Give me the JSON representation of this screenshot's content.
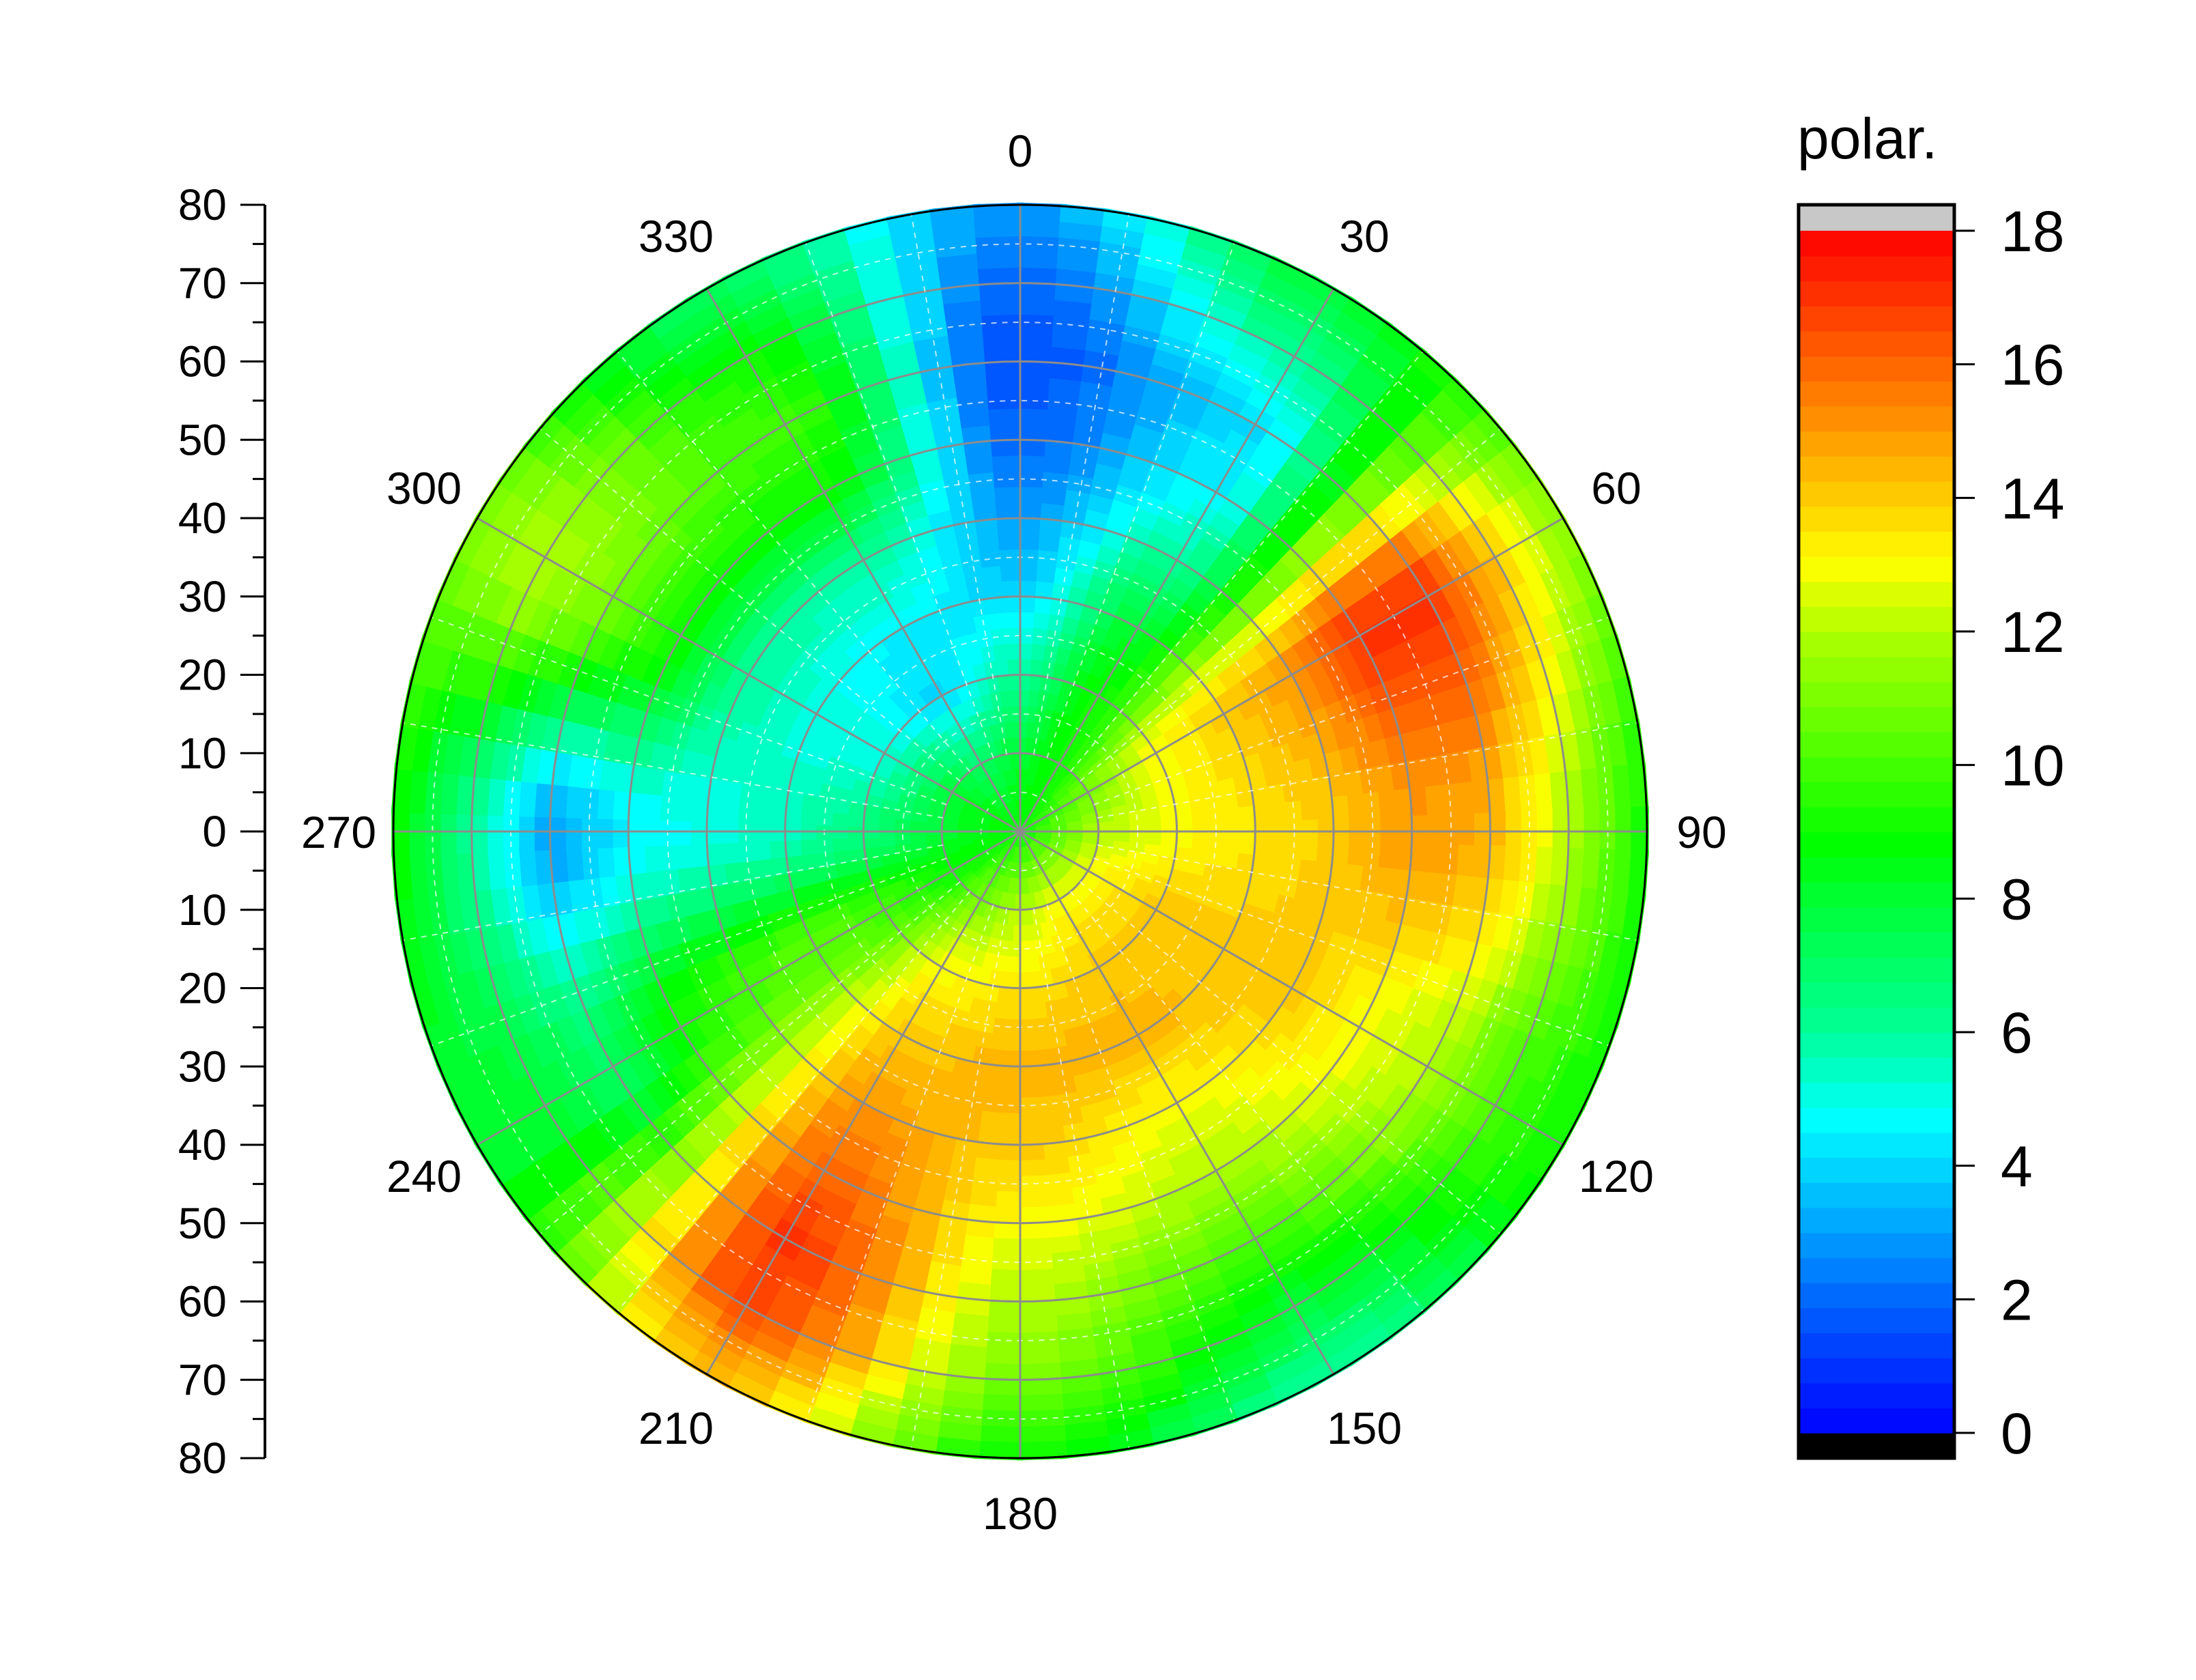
{
  "chart_data": {
    "type": "heatmap",
    "subtype": "polar contour",
    "colorbar": {
      "title": "polar.",
      "ticks": [
        0,
        2,
        4,
        6,
        8,
        10,
        12,
        14,
        16,
        18
      ],
      "range": [
        0,
        18
      ],
      "over_color": "#c8c8c8",
      "under_color": "#000000",
      "colors": [
        {
          "v": 0,
          "c": "#0000ff"
        },
        {
          "v": 2,
          "c": "#0066ff"
        },
        {
          "v": 4,
          "c": "#00d8ff"
        },
        {
          "v": 4.7,
          "c": "#00ffff"
        },
        {
          "v": 6,
          "c": "#00ff99"
        },
        {
          "v": 8,
          "c": "#00ff33"
        },
        {
          "v": 8.8,
          "c": "#00ff00"
        },
        {
          "v": 10,
          "c": "#44ff00"
        },
        {
          "v": 12,
          "c": "#b0ff00"
        },
        {
          "v": 13,
          "c": "#ffff00"
        },
        {
          "v": 14,
          "c": "#ffcc00"
        },
        {
          "v": 15,
          "c": "#ff9900"
        },
        {
          "v": 16,
          "c": "#ff6600"
        },
        {
          "v": 17,
          "c": "#ff3300"
        },
        {
          "v": 18,
          "c": "#ff0000"
        }
      ],
      "level_step": 0.375
    },
    "radial_axis": {
      "range": [
        0,
        80
      ],
      "tick_labels": [
        "80",
        "70",
        "60",
        "50",
        "40",
        "30",
        "20",
        "10",
        "0",
        "10",
        "20",
        "30",
        "40",
        "50",
        "60",
        "70",
        "80"
      ]
    },
    "angular_axis": {
      "direction": "clockwise",
      "zero": "top",
      "tick_labels": [
        "0",
        "30",
        "60",
        "90",
        "120",
        "150",
        "180",
        "210",
        "240",
        "270",
        "300",
        "330"
      ]
    },
    "grid": true,
    "angles": [
      0,
      30,
      60,
      90,
      120,
      150,
      180,
      210,
      240,
      270,
      300,
      330
    ],
    "radii": [
      0,
      10,
      20,
      30,
      40,
      50,
      60,
      70,
      80
    ],
    "z": [
      [
        9,
        8,
        6,
        4,
        3,
        2,
        1.5,
        2,
        3
      ],
      [
        9,
        9,
        9,
        8,
        6,
        4.5,
        4,
        6,
        8
      ],
      [
        9,
        11,
        13,
        14,
        15,
        17,
        17,
        14,
        11
      ],
      [
        9,
        12,
        13,
        13.5,
        14,
        15,
        14.5,
        12,
        9
      ],
      [
        9,
        13,
        14,
        14,
        14,
        13,
        12,
        10,
        9
      ],
      [
        9,
        13,
        14,
        14.5,
        13,
        12,
        10,
        8,
        6
      ],
      [
        9,
        12,
        13.5,
        14.5,
        14,
        13,
        12,
        11,
        9
      ],
      [
        9,
        11,
        13,
        14,
        15,
        16,
        17,
        16.5,
        14
      ],
      [
        9,
        9,
        10,
        10.5,
        10,
        9,
        7,
        8,
        8
      ],
      [
        9,
        8,
        6.5,
        5.5,
        5,
        4.5,
        3,
        6,
        9
      ],
      [
        9,
        8,
        5,
        5,
        6,
        9,
        11,
        12,
        11
      ],
      [
        9,
        7,
        4,
        4.5,
        6,
        9,
        10,
        9,
        7
      ]
    ]
  }
}
